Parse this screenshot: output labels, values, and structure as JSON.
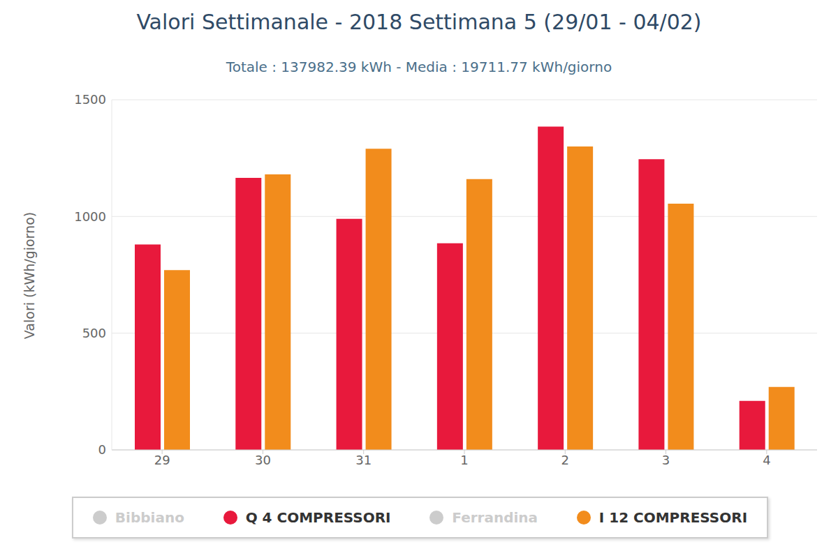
{
  "chart_data": {
    "type": "bar",
    "title": "Valori Settimanale - 2018 Settimana 5 (29/01 - 04/02)",
    "subtitle": "Totale : 137982.39 kWh - Media : 19711.77 kWh/giorno",
    "y_label": "Valori (kWh/giorno)",
    "categories": [
      "29",
      "30",
      "31",
      "1",
      "2",
      "3",
      "4"
    ],
    "series": [
      {
        "name": "Bibbiano",
        "color": "#cccccc",
        "values": [
          null,
          null,
          null,
          null,
          null,
          null,
          null
        ]
      },
      {
        "name": "Q 4 COMPRESSORI",
        "color": "#e8193c",
        "values": [
          880,
          1165,
          990,
          885,
          1385,
          1245,
          210
        ]
      },
      {
        "name": "Ferrandina",
        "color": "#cccccc",
        "values": [
          null,
          null,
          null,
          null,
          null,
          null,
          null
        ]
      },
      {
        "name": "I 12 COMPRESSORI",
        "color": "#f28c1c",
        "values": [
          770,
          1180,
          1290,
          1160,
          1300,
          1055,
          270
        ]
      }
    ],
    "ylim": [
      0,
      1500
    ],
    "yticks": [
      0,
      500,
      1000,
      1500
    ],
    "grid": true,
    "legend": "bottom"
  }
}
